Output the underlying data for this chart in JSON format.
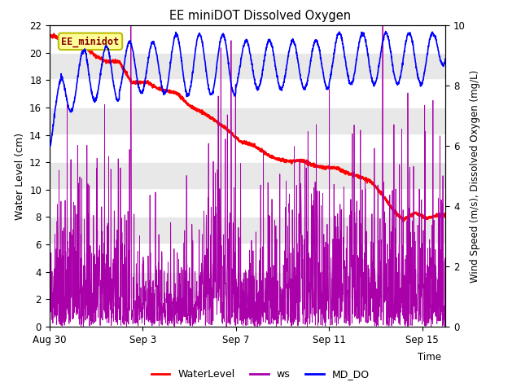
{
  "title": "EE miniDOT Dissolved Oxygen",
  "ylabel_left": "Water Level (cm)",
  "ylabel_right": "Wind Speed (m/s), Dissolved Oxygen (mg/L)",
  "xlabel": "Time",
  "annotation": "EE_minidot",
  "xlim_days": [
    0,
    17.0
  ],
  "ylim_left": [
    0,
    22
  ],
  "ylim_right": [
    0.0,
    10.0
  ],
  "xtick_positions": [
    0,
    4,
    8,
    12,
    16
  ],
  "xtick_labels": [
    "Aug 30",
    "Sep 3",
    "Sep 7",
    "Sep 11",
    "Sep 15"
  ],
  "ytick_left": [
    0,
    2,
    4,
    6,
    8,
    10,
    12,
    14,
    16,
    18,
    20,
    22
  ],
  "ytick_right": [
    0.0,
    2.0,
    4.0,
    6.0,
    8.0,
    10.0
  ],
  "legend_labels": [
    "WaterLevel",
    "ws",
    "MD_DO"
  ],
  "legend_colors": [
    "#ff0000",
    "#aa00aa",
    "#0000ff"
  ],
  "line_colors": {
    "WaterLevel": "#ff0000",
    "ws": "#aa00aa",
    "MD_DO": "#0000ff"
  },
  "annotation_bg": "#ffff99",
  "annotation_border": "#bbbb00",
  "bg_color": "#ffffff",
  "band_colors": [
    "#ffffff",
    "#e8e8e8"
  ],
  "grid_color": "#ffffff"
}
